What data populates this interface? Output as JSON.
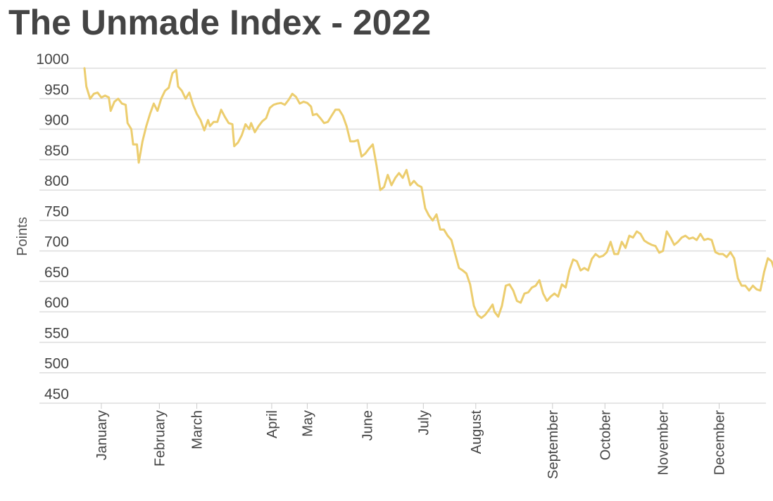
{
  "chart_data": {
    "type": "line",
    "title": "The Unmade Index - 2022",
    "ylabel": "Points",
    "xlabel": "",
    "ylim": [
      450,
      1000
    ],
    "yticks": [
      1000,
      950,
      900,
      850,
      800,
      750,
      700,
      650,
      600,
      550,
      500,
      450
    ],
    "grid": true,
    "x_range_days": [
      1,
      365
    ],
    "month_ticks": [
      {
        "label": "January",
        "day": 10
      },
      {
        "label": "February",
        "day": 41
      },
      {
        "label": "March",
        "day": 61
      },
      {
        "label": "April",
        "day": 101
      },
      {
        "label": "May",
        "day": 120
      },
      {
        "label": "June",
        "day": 152
      },
      {
        "label": "July",
        "day": 182
      },
      {
        "label": "August",
        "day": 210
      },
      {
        "label": "September",
        "day": 251
      },
      {
        "label": "October",
        "day": 279
      },
      {
        "label": "November",
        "day": 310
      },
      {
        "label": "December",
        "day": 340
      }
    ],
    "series": [
      {
        "color": "#eccd6e",
        "points": [
          [
            1,
            1000
          ],
          [
            2,
            970
          ],
          [
            4,
            950
          ],
          [
            6,
            958
          ],
          [
            8,
            960
          ],
          [
            10,
            952
          ],
          [
            12,
            955
          ],
          [
            14,
            952
          ],
          [
            15,
            930
          ],
          [
            17,
            945
          ],
          [
            19,
            950
          ],
          [
            21,
            942
          ],
          [
            23,
            940
          ],
          [
            24,
            910
          ],
          [
            26,
            900
          ],
          [
            27,
            875
          ],
          [
            29,
            875
          ],
          [
            30,
            845
          ],
          [
            32,
            880
          ],
          [
            34,
            905
          ],
          [
            36,
            925
          ],
          [
            38,
            942
          ],
          [
            40,
            930
          ],
          [
            42,
            950
          ],
          [
            44,
            963
          ],
          [
            46,
            968
          ],
          [
            48,
            992
          ],
          [
            50,
            997
          ],
          [
            51,
            970
          ],
          [
            53,
            963
          ],
          [
            55,
            950
          ],
          [
            57,
            960
          ],
          [
            59,
            940
          ],
          [
            61,
            925
          ],
          [
            63,
            915
          ],
          [
            65,
            898
          ],
          [
            67,
            915
          ],
          [
            68,
            905
          ],
          [
            70,
            912
          ],
          [
            72,
            912
          ],
          [
            74,
            932
          ],
          [
            76,
            920
          ],
          [
            78,
            910
          ],
          [
            80,
            908
          ],
          [
            81,
            872
          ],
          [
            83,
            878
          ],
          [
            85,
            890
          ],
          [
            87,
            908
          ],
          [
            89,
            900
          ],
          [
            90,
            910
          ],
          [
            92,
            895
          ],
          [
            94,
            905
          ],
          [
            96,
            913
          ],
          [
            98,
            918
          ],
          [
            100,
            935
          ],
          [
            102,
            940
          ],
          [
            104,
            942
          ],
          [
            106,
            943
          ],
          [
            108,
            940
          ],
          [
            110,
            948
          ],
          [
            112,
            958
          ],
          [
            114,
            953
          ],
          [
            116,
            942
          ],
          [
            118,
            945
          ],
          [
            120,
            943
          ],
          [
            122,
            937
          ],
          [
            123,
            923
          ],
          [
            125,
            925
          ],
          [
            127,
            918
          ],
          [
            129,
            910
          ],
          [
            131,
            912
          ],
          [
            133,
            922
          ],
          [
            135,
            932
          ],
          [
            137,
            932
          ],
          [
            139,
            922
          ],
          [
            141,
            905
          ],
          [
            143,
            880
          ],
          [
            145,
            880
          ],
          [
            147,
            882
          ],
          [
            149,
            855
          ],
          [
            151,
            860
          ],
          [
            153,
            868
          ],
          [
            155,
            875
          ],
          [
            157,
            840
          ],
          [
            159,
            800
          ],
          [
            161,
            805
          ],
          [
            163,
            825
          ],
          [
            165,
            808
          ],
          [
            167,
            820
          ],
          [
            169,
            828
          ],
          [
            171,
            820
          ],
          [
            173,
            833
          ],
          [
            175,
            808
          ],
          [
            177,
            815
          ],
          [
            179,
            808
          ],
          [
            181,
            805
          ],
          [
            183,
            770
          ],
          [
            185,
            758
          ],
          [
            187,
            750
          ],
          [
            189,
            760
          ],
          [
            191,
            735
          ],
          [
            193,
            735
          ],
          [
            195,
            725
          ],
          [
            197,
            718
          ],
          [
            199,
            695
          ],
          [
            201,
            672
          ],
          [
            203,
            668
          ],
          [
            205,
            663
          ],
          [
            207,
            645
          ],
          [
            209,
            610
          ],
          [
            211,
            595
          ],
          [
            213,
            590
          ],
          [
            215,
            595
          ],
          [
            217,
            603
          ],
          [
            219,
            612
          ],
          [
            220,
            600
          ],
          [
            222,
            592
          ],
          [
            224,
            610
          ],
          [
            226,
            643
          ],
          [
            228,
            645
          ],
          [
            230,
            635
          ],
          [
            232,
            618
          ],
          [
            234,
            615
          ],
          [
            236,
            630
          ],
          [
            238,
            632
          ],
          [
            240,
            640
          ],
          [
            242,
            643
          ],
          [
            244,
            652
          ],
          [
            246,
            630
          ],
          [
            248,
            618
          ],
          [
            250,
            625
          ],
          [
            252,
            630
          ],
          [
            254,
            625
          ],
          [
            256,
            645
          ],
          [
            258,
            640
          ],
          [
            260,
            668
          ],
          [
            262,
            686
          ],
          [
            264,
            683
          ],
          [
            266,
            668
          ],
          [
            268,
            672
          ],
          [
            270,
            668
          ],
          [
            272,
            687
          ],
          [
            274,
            695
          ],
          [
            276,
            690
          ],
          [
            278,
            692
          ],
          [
            280,
            698
          ],
          [
            282,
            715
          ],
          [
            284,
            695
          ],
          [
            286,
            695
          ],
          [
            288,
            715
          ],
          [
            290,
            705
          ],
          [
            292,
            725
          ],
          [
            294,
            722
          ],
          [
            296,
            732
          ],
          [
            298,
            728
          ],
          [
            300,
            717
          ],
          [
            302,
            713
          ],
          [
            304,
            710
          ],
          [
            306,
            708
          ],
          [
            308,
            697
          ],
          [
            310,
            700
          ],
          [
            312,
            732
          ],
          [
            314,
            722
          ],
          [
            316,
            710
          ],
          [
            318,
            715
          ],
          [
            320,
            722
          ],
          [
            322,
            725
          ],
          [
            324,
            720
          ],
          [
            326,
            722
          ],
          [
            328,
            718
          ],
          [
            330,
            728
          ],
          [
            332,
            718
          ],
          [
            334,
            720
          ],
          [
            336,
            718
          ],
          [
            338,
            698
          ],
          [
            340,
            695
          ],
          [
            342,
            695
          ],
          [
            344,
            690
          ],
          [
            346,
            698
          ],
          [
            348,
            688
          ],
          [
            350,
            655
          ],
          [
            352,
            643
          ],
          [
            354,
            643
          ],
          [
            356,
            635
          ],
          [
            358,
            643
          ],
          [
            360,
            637
          ],
          [
            362,
            635
          ],
          [
            364,
            665
          ],
          [
            366,
            688
          ],
          [
            368,
            683
          ],
          [
            370,
            665
          ],
          [
            372,
            650
          ],
          [
            374,
            645
          ],
          [
            376,
            630
          ],
          [
            378,
            652
          ],
          [
            380,
            650
          ],
          [
            382,
            662
          ],
          [
            384,
            665
          ],
          [
            386,
            658
          ],
          [
            388,
            655
          ],
          [
            390,
            660
          ],
          [
            392,
            680
          ],
          [
            394,
            685
          ],
          [
            396,
            678
          ],
          [
            398,
            670
          ],
          [
            400,
            683
          ],
          [
            402,
            703
          ],
          [
            404,
            703
          ],
          [
            406,
            695
          ],
          [
            408,
            692
          ],
          [
            410,
            680
          ],
          [
            412,
            677
          ],
          [
            414,
            670
          ],
          [
            416,
            662
          ],
          [
            418,
            688
          ],
          [
            420,
            682
          ],
          [
            422,
            688
          ],
          [
            424,
            680
          ],
          [
            426,
            675
          ],
          [
            428,
            672
          ],
          [
            430,
            667
          ],
          [
            432,
            667
          ],
          [
            434,
            667
          ],
          [
            436,
            673
          ],
          [
            438,
            673
          ],
          [
            440,
            673
          ],
          [
            442,
            682
          ],
          [
            444,
            677
          ],
          [
            446,
            693
          ],
          [
            448,
            707
          ],
          [
            450,
            705
          ],
          [
            452,
            685
          ],
          [
            454,
            670
          ],
          [
            456,
            660
          ],
          [
            458,
            658
          ],
          [
            460,
            650
          ],
          [
            462,
            662
          ],
          [
            464,
            660
          ],
          [
            466,
            655
          ],
          [
            468,
            648
          ]
        ]
      }
    ]
  }
}
